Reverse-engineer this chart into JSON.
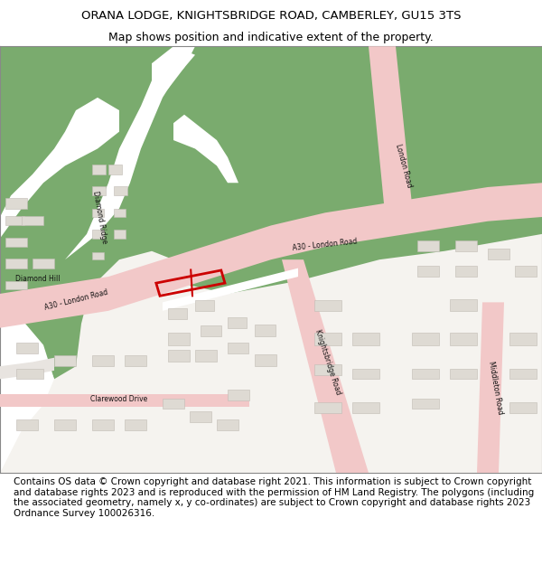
{
  "title_line1": "ORANA LODGE, KNIGHTSBRIDGE ROAD, CAMBERLEY, GU15 3TS",
  "title_line2": "Map shows position and indicative extent of the property.",
  "copyright_text": "Contains OS data © Crown copyright and database right 2021. This information is subject to Crown copyright and database rights 2023 and is reproduced with the permission of HM Land Registry. The polygons (including the associated geometry, namely x, y co-ordinates) are subject to Crown copyright and database rights 2023 Ordnance Survey 100026316.",
  "title_fontsize": 9.5,
  "subtitle_fontsize": 9.0,
  "copyright_fontsize": 7.5,
  "background_color": "#ffffff",
  "map_bg": "#f5f3ef",
  "green_color": "#7aab6e",
  "road_pink": "#f2c8c8",
  "building_color": "#dedad3",
  "plot_outline": "#cc0000"
}
